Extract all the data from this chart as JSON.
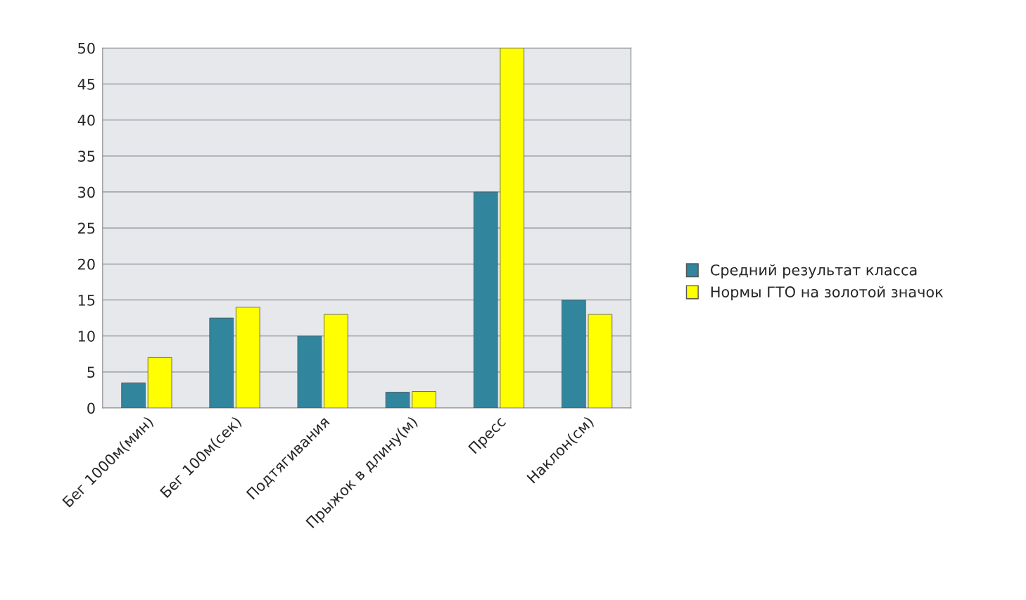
{
  "chart_data": {
    "type": "bar",
    "categories": [
      "Бег 1000м(мин)",
      "Бег 100м(сек)",
      "Подтягивания",
      "Прыжок в длину(м)",
      "Пресс",
      "Наклон(см)"
    ],
    "series": [
      {
        "name": "Средний результат класса",
        "color": "#31859c",
        "values": [
          3.5,
          12.5,
          10,
          2.2,
          30,
          15
        ]
      },
      {
        "name": "Нормы ГТО на золотой значок",
        "color": "#ffff00",
        "values": [
          7,
          14,
          13,
          2.3,
          50,
          13
        ]
      }
    ],
    "ylim": [
      0,
      50
    ],
    "yticks": [
      0,
      5,
      10,
      15,
      20,
      25,
      30,
      35,
      40,
      45,
      50
    ],
    "grid": "y",
    "legend": "right"
  }
}
